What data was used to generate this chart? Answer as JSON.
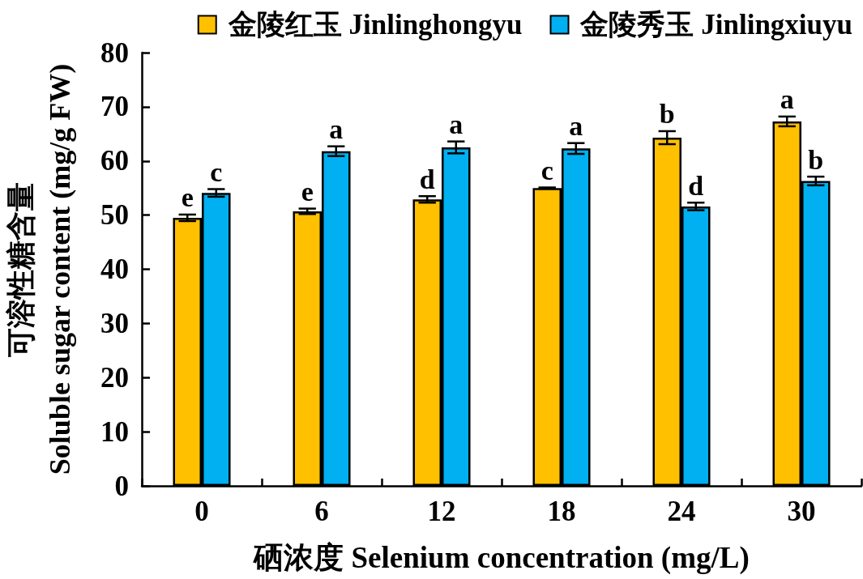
{
  "chart_data": {
    "type": "bar",
    "xlabel": "硒浓度 Selenium concentration (mg/L)",
    "ylabel": "可溶性糖含量\nSoluble sugar content (mg/g FW)",
    "categories": [
      "0",
      "6",
      "12",
      "18",
      "24",
      "30"
    ],
    "series": [
      {
        "name": "金陵红玉 Jinlinghongyu",
        "color": "#ffc000",
        "values": [
          49.5,
          50.7,
          52.9,
          55.0,
          64.3,
          67.3
        ],
        "errors": [
          0.6,
          0.5,
          0.6,
          0.1,
          1.2,
          0.9
        ],
        "value_labels": [
          "e",
          "e",
          "d",
          "c",
          "b",
          "a"
        ]
      },
      {
        "name": "金陵秀玉 Jinlingxiuyu",
        "color": "#00b0f0",
        "values": [
          54.1,
          61.8,
          62.5,
          62.3,
          51.6,
          56.3
        ],
        "errors": [
          0.7,
          0.9,
          1.1,
          1.0,
          0.7,
          0.8
        ],
        "value_labels": [
          "c",
          "a",
          "a",
          "a",
          "d",
          "b"
        ]
      }
    ],
    "ylim": [
      0,
      80
    ],
    "yticks": [
      0,
      10,
      20,
      30,
      40,
      50,
      60,
      70,
      80
    ],
    "legend": "top"
  }
}
